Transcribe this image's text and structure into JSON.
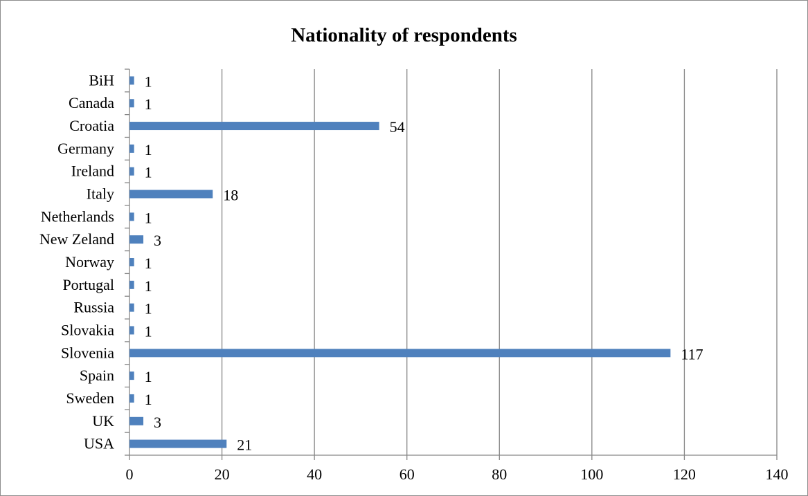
{
  "chart_data": {
    "type": "bar",
    "orientation": "horizontal",
    "title": "Nationality of respondents",
    "xlabel": "",
    "ylabel": "",
    "categories": [
      "BiH",
      "Canada",
      "Croatia",
      "Germany",
      "Ireland",
      "Italy",
      "Netherlands",
      "New Zeland",
      "Norway",
      "Portugal",
      "Russia",
      "Slovakia",
      "Slovenia",
      "Spain",
      "Sweden",
      "UK",
      "USA"
    ],
    "values": [
      1,
      1,
      54,
      1,
      1,
      18,
      1,
      3,
      1,
      1,
      1,
      1,
      117,
      1,
      1,
      3,
      21
    ],
    "xlim": [
      0,
      140
    ],
    "xticks": [
      0,
      20,
      40,
      60,
      80,
      100,
      120,
      140
    ],
    "grid": "vertical",
    "legend": "none",
    "data_labels": true,
    "bar_color": "#4f81bd"
  }
}
